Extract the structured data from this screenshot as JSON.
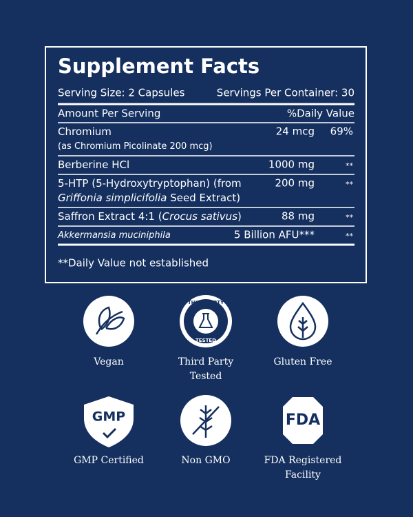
{
  "title": "Supplement Facts",
  "serving_size": "Serving Size: 2 Capsules",
  "servings_per_container": "Servings Per Container: 30",
  "column_headers": {
    "amount": "Amount Per Serving",
    "daily_value": "%Daily Value"
  },
  "rows": [
    {
      "lines": [
        [
          {
            "text": "Chromium"
          }
        ],
        [
          {
            "text": "(as Chromium Picolinate 200 mcg)",
            "small": true
          }
        ]
      ],
      "amount": "24 mcg",
      "daily_value": "69%"
    },
    {
      "lines": [
        [
          {
            "text": "Berberine HCl"
          }
        ]
      ],
      "amount": "1000 mg",
      "daily_value": "**"
    },
    {
      "lines": [
        [
          {
            "text": "5-HTP (5-Hydroxytryptophan) (from"
          }
        ],
        [
          {
            "text": "Griffonia simplicifolia",
            "italic": true
          },
          {
            "text": " Seed Extract)"
          }
        ]
      ],
      "amount": "200 mg",
      "daily_value": "**"
    },
    {
      "lines": [
        [
          {
            "text": "Saffron Extract 4:1 ("
          },
          {
            "text": "Crocus sativus",
            "italic": true
          },
          {
            "text": ")"
          }
        ]
      ],
      "amount": "88 mg",
      "daily_value": "**"
    },
    {
      "lines": [
        [
          {
            "text": "Akkermansia muciniphila",
            "italic": true,
            "small": true
          }
        ]
      ],
      "amount": "5 Billion AFU***",
      "daily_value": "**"
    }
  ],
  "footnote": "**Daily Value not established",
  "badges": [
    {
      "lines": [
        "Vegan"
      ]
    },
    {
      "lines": [
        "Third Party",
        "Tested"
      ],
      "icon_text": [
        "THIRD-PARTY",
        "TESTED"
      ]
    },
    {
      "lines": [
        "Gluten Free"
      ]
    },
    {
      "lines": [
        "GMP Certified"
      ],
      "icon_text": [
        "GMP"
      ]
    },
    {
      "lines": [
        "Non GMO"
      ]
    },
    {
      "lines": [
        "FDA Registered",
        "Facility"
      ],
      "icon_text": [
        "FDA"
      ]
    }
  ]
}
